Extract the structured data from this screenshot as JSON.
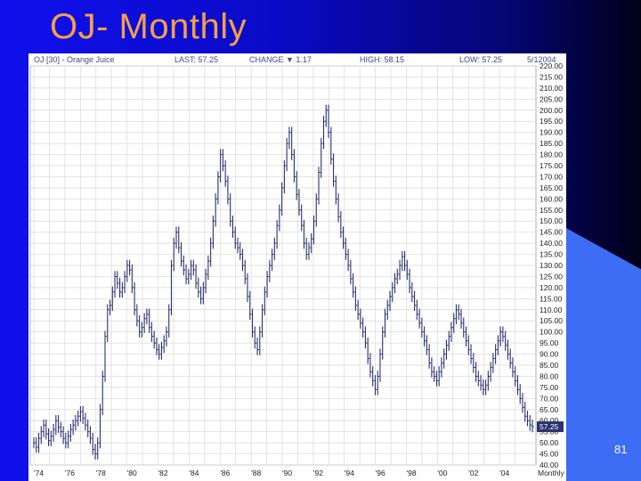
{
  "slide": {
    "title": "OJ- Monthly",
    "page_number": "81"
  },
  "colors": {
    "title": "#f5a046",
    "bars": "#2a3170",
    "last_price_tag": "#2a3170",
    "grid": "#d8d8d8"
  },
  "chart_data": {
    "type": "ohlc-bar",
    "header": {
      "symbol": "OJ [30] - Orange Juice",
      "last": "LAST: 57.25",
      "change": "CHANGE ▼ 1.17",
      "high": "HIGH: 58.15",
      "low": "LOW: 57.25",
      "date": "5/12004"
    },
    "ylim": [
      40,
      220
    ],
    "yticks": [
      40,
      45,
      50,
      55,
      60,
      65,
      70,
      75,
      80,
      85,
      90,
      95,
      100,
      105,
      110,
      115,
      120,
      125,
      130,
      135,
      140,
      145,
      150,
      155,
      160,
      165,
      170,
      175,
      180,
      185,
      190,
      195,
      200,
      205,
      210,
      215,
      220
    ],
    "ytick_labels": [
      "40.00",
      "45.00",
      "50.00",
      "55.00",
      "60.00",
      "65.00",
      "70.00",
      "75.00",
      "80.00",
      "85.00",
      "90.00",
      "95.00",
      "100.00",
      "105.00",
      "110.00",
      "115.00",
      "120.00",
      "125.00",
      "130.00",
      "135.00",
      "140.00",
      "145.00",
      "150.00",
      "155.00",
      "160.00",
      "165.00",
      "170.00",
      "175.00",
      "180.00",
      "185.00",
      "190.00",
      "195.00",
      "200.00",
      "205.00",
      "210.00",
      "215.00",
      "220.00"
    ],
    "xticks": [
      "'74",
      "'76",
      "'78",
      "'80",
      "'82",
      "'84",
      "'86",
      "'88",
      "'90",
      "'92",
      "'94",
      "'96",
      "'98",
      "'00",
      "'02",
      "'04"
    ],
    "x_end_label": "Monthly",
    "last_price_label": "57.25",
    "last_value": 57.25,
    "grid": true,
    "series": [
      {
        "values": [
          50,
          48,
          52,
          55,
          58,
          54,
          51,
          53,
          56,
          60,
          57,
          55,
          52,
          50,
          53,
          56,
          58,
          60,
          62,
          64,
          61,
          58,
          55,
          52,
          47,
          45,
          50,
          65,
          80,
          98,
          110,
          112,
          118,
          125,
          122,
          118,
          120,
          125,
          130,
          128,
          120,
          110,
          105,
          100,
          102,
          106,
          108,
          102,
          98,
          95,
          92,
          90,
          93,
          96,
          100,
          110,
          130,
          140,
          145,
          138,
          132,
          128,
          124,
          126,
          130,
          128,
          122,
          118,
          115,
          120,
          126,
          132,
          140,
          150,
          160,
          170,
          180,
          175,
          168,
          160,
          150,
          145,
          140,
          138,
          135,
          130,
          124,
          116,
          108,
          100,
          95,
          92,
          100,
          110,
          118,
          125,
          130,
          135,
          140,
          148,
          155,
          165,
          175,
          185,
          190,
          180,
          170,
          162,
          155,
          148,
          140,
          135,
          138,
          142,
          150,
          160,
          172,
          185,
          195,
          200,
          190,
          178,
          168,
          160,
          152,
          145,
          140,
          135,
          130,
          124,
          118,
          112,
          108,
          104,
          100,
          95,
          88,
          82,
          78,
          74,
          80,
          90,
          100,
          108,
          112,
          116,
          120,
          124,
          126,
          130,
          134,
          130,
          126,
          120,
          116,
          112,
          108,
          104,
          100,
          96,
          92,
          86,
          82,
          80,
          78,
          82,
          86,
          90,
          94,
          98,
          102,
          106,
          110,
          108,
          104,
          100,
          96,
          92,
          88,
          84,
          80,
          78,
          76,
          74,
          76,
          80,
          84,
          88,
          92,
          96,
          100,
          98,
          94,
          90,
          86,
          82,
          78,
          74,
          70,
          66,
          62,
          60,
          58,
          57.25
        ]
      }
    ]
  }
}
